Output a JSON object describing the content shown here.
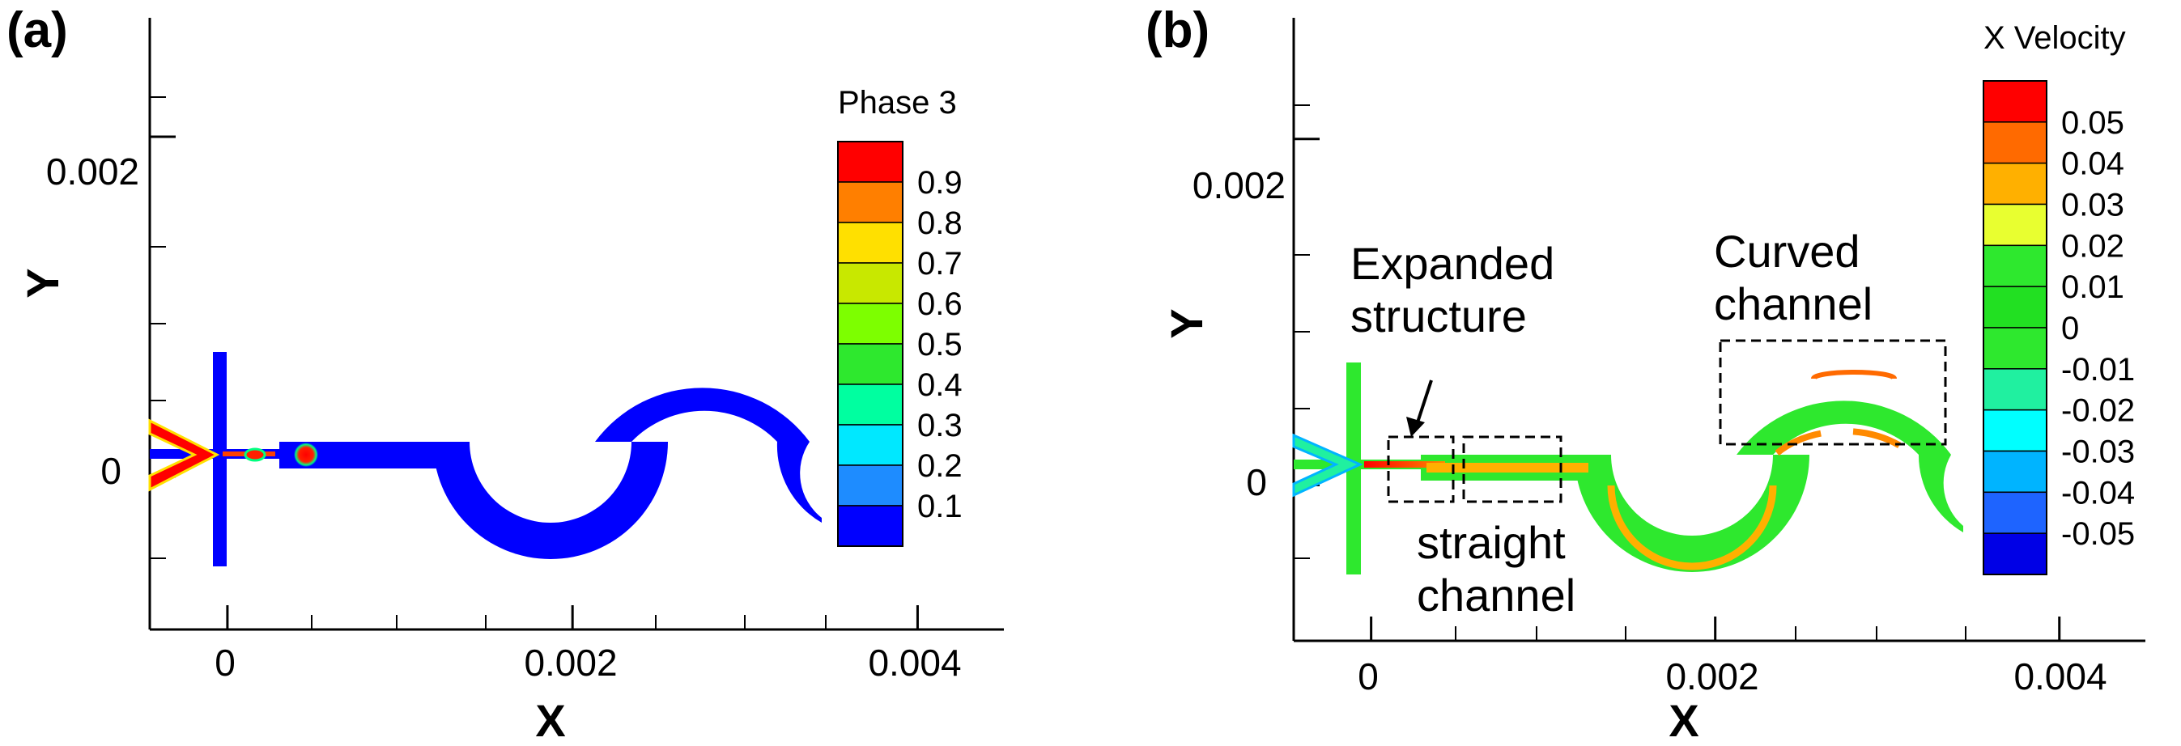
{
  "chart_data": [
    {
      "panel": "(a)",
      "type": "heatmap",
      "field": "Phase 3",
      "xlabel": "X",
      "ylabel": "Y",
      "x_ticks": [
        "0",
        "0.002",
        "0.004"
      ],
      "y_ticks": [
        "0",
        "0.002"
      ],
      "x_tick_values": [
        0,
        0.002,
        0.004
      ],
      "y_tick_values": [
        0,
        0.002
      ],
      "xlim": [
        -0.00045,
        0.0045
      ],
      "ylim": [
        -0.0009,
        0.0027
      ],
      "colorbar": {
        "title": "Phase 3",
        "labels": [
          "0.9",
          "0.8",
          "0.7",
          "0.6",
          "0.5",
          "0.4",
          "0.3",
          "0.2",
          "0.1"
        ],
        "levels": [
          0.9,
          0.8,
          0.7,
          0.6,
          0.5,
          0.4,
          0.3,
          0.2,
          0.1
        ],
        "colors": [
          "#ff0000",
          "#ff7f00",
          "#ffe000",
          "#c8e800",
          "#7dff00",
          "#2ee82e",
          "#00ffa0",
          "#00e8ff",
          "#1e8cff",
          "#0000ff"
        ]
      },
      "domain_color": "#0000ff",
      "droplet_color": "#ff0000"
    },
    {
      "panel": "(b)",
      "type": "heatmap",
      "field": "X Velocity",
      "xlabel": "X",
      "ylabel": "Y",
      "x_ticks": [
        "0",
        "0.002",
        "0.004"
      ],
      "y_ticks": [
        "0",
        "0.002"
      ],
      "x_tick_values": [
        0,
        0.002,
        0.004
      ],
      "y_tick_values": [
        0,
        0.002
      ],
      "xlim": [
        -0.00045,
        0.0045
      ],
      "ylim": [
        -0.0009,
        0.0027
      ],
      "colorbar": {
        "title": "X Velocity",
        "labels": [
          "0.05",
          "0.04",
          "0.03",
          "0.02",
          "0.01",
          "0",
          "-0.01",
          "-0.02",
          "-0.03",
          "-0.04",
          "-0.05"
        ],
        "levels": [
          0.05,
          0.04,
          0.03,
          0.02,
          0.01,
          0,
          -0.01,
          -0.02,
          -0.03,
          -0.04,
          -0.05
        ],
        "colors": [
          "#ff0000",
          "#ff6a00",
          "#ffb000",
          "#e8ff30",
          "#2ee82e",
          "#22e022",
          "#2ee82e",
          "#20f0a0",
          "#00ffff",
          "#00b4ff",
          "#1e64ff",
          "#0000e6"
        ]
      },
      "annotations": [
        {
          "lines": [
            "Expanded",
            "structure"
          ]
        },
        {
          "lines": [
            "Curved",
            "channel"
          ]
        },
        {
          "lines": [
            "straight",
            "channel"
          ]
        }
      ],
      "domain_color": "#2ee82e",
      "core_color": "#ff2000"
    }
  ]
}
